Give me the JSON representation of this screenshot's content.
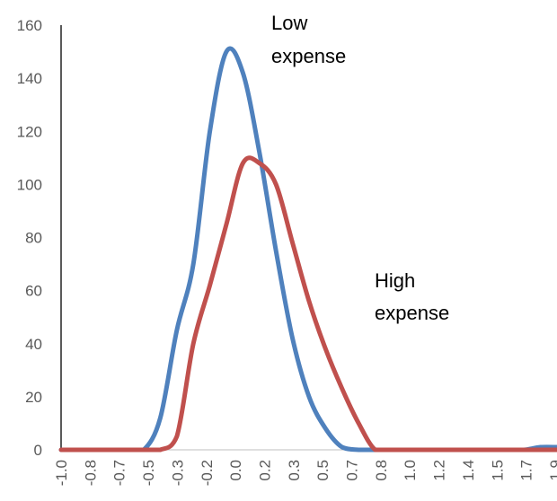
{
  "chart_data": {
    "type": "line",
    "title": "",
    "xlabel": "",
    "ylabel": "",
    "x": [
      -1.0,
      -0.9,
      -0.8,
      -0.7,
      -0.6,
      -0.5,
      -0.4,
      -0.3,
      -0.2,
      -0.1,
      0.0,
      0.1,
      0.2,
      0.3,
      0.4,
      0.5,
      0.6,
      0.7,
      0.8,
      0.9,
      1.0,
      1.1,
      1.2,
      1.3,
      1.4,
      1.5,
      1.6,
      1.7,
      1.8,
      1.9,
      2.0
    ],
    "x_tick_labels": [
      "-1.0",
      "-0.8",
      "-0.7",
      "-0.5",
      "-0.3",
      "-0.2",
      "0.0",
      "0.2",
      "0.3",
      "0.5",
      "0.7",
      "0.8",
      "1.0",
      "1.2",
      "1.4",
      "1.5",
      "1.7",
      "1.9"
    ],
    "ylim": [
      0,
      160
    ],
    "y_ticks": [
      0,
      20,
      40,
      60,
      80,
      100,
      120,
      140,
      160
    ],
    "grid": false,
    "series": [
      {
        "name": "Low expense",
        "color": "#4F81BD",
        "values": [
          0,
          0,
          0,
          0,
          0,
          0,
          12,
          45,
          70,
          120,
          150,
          142,
          112,
          75,
          42,
          20,
          8,
          1,
          0,
          0,
          0,
          0,
          0,
          0,
          0,
          0,
          0,
          0,
          0,
          1,
          1
        ]
      },
      {
        "name": "High expense",
        "color": "#C0504D",
        "values": [
          0,
          0,
          0,
          0,
          0,
          0,
          0,
          5,
          40,
          62,
          85,
          108,
          108,
          100,
          78,
          56,
          38,
          23,
          10,
          0,
          0,
          0,
          0,
          0,
          0,
          0,
          0,
          0,
          0,
          0,
          0
        ]
      }
    ],
    "annotations": {
      "low_line1": "Low",
      "low_line2": "expense",
      "high_line1": "High",
      "high_line2": "expense"
    }
  }
}
